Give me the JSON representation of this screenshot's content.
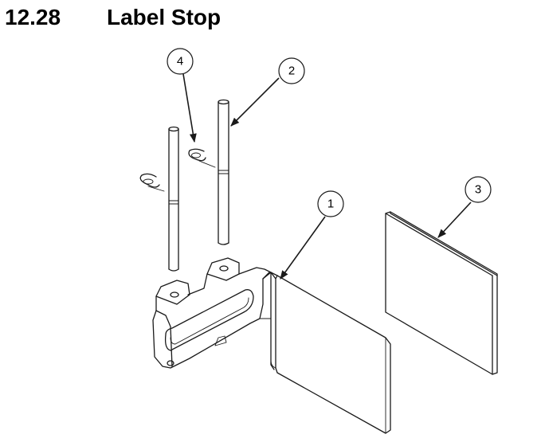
{
  "section": {
    "number": "12.28",
    "title": "Label Stop"
  },
  "callouts": [
    {
      "label": "4",
      "part": "e-clip"
    },
    {
      "label": "2",
      "part": "shaft"
    },
    {
      "label": "1",
      "part": "bracket"
    },
    {
      "label": "3",
      "part": "label-pad"
    }
  ],
  "colors": {
    "line": "#1a1a1a",
    "background": "#ffffff"
  }
}
